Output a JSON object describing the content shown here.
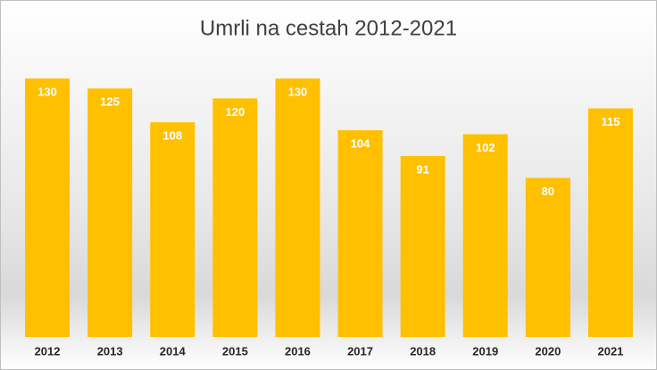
{
  "chart_data": {
    "type": "bar",
    "title": "Umrli na cestah 2012-2021",
    "categories": [
      "2012",
      "2013",
      "2014",
      "2015",
      "2016",
      "2017",
      "2018",
      "2019",
      "2020",
      "2021"
    ],
    "values": [
      130,
      125,
      108,
      120,
      130,
      104,
      91,
      102,
      80,
      115
    ],
    "color": "#ffc000"
  }
}
